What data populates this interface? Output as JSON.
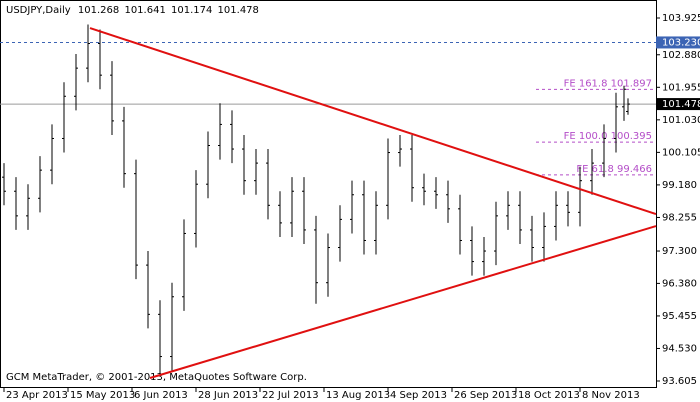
{
  "chart_data": {
    "type": "ohlc",
    "header": {
      "symbol": "USDJPY,Daily",
      "ohlc": [
        101.268,
        101.641,
        101.174,
        101.478
      ]
    },
    "footer": "GCM MetaTrader, © 2001-2013, MetaQuotes Software Corp.",
    "color": "#000000",
    "x": [
      0,
      3,
      6,
      9,
      12,
      15,
      18,
      21,
      24,
      27,
      30,
      33,
      36,
      39,
      42,
      45,
      48,
      51,
      54,
      57,
      60,
      63,
      66,
      69,
      72,
      75,
      78,
      81,
      84,
      87,
      90,
      93,
      96,
      99,
      102,
      105,
      108,
      111,
      114,
      117,
      120,
      123,
      126,
      129,
      132,
      135,
      138,
      141,
      144,
      147,
      150,
      153,
      155,
      156
    ],
    "open": [
      99.4,
      99.0,
      98.3,
      98.8,
      99.6,
      100.5,
      101.7,
      102.5,
      103.2,
      102.3,
      101.0,
      99.5,
      96.9,
      95.5,
      94.3,
      96.0,
      97.8,
      99.2,
      100.3,
      100.9,
      100.2,
      99.3,
      99.8,
      98.6,
      98.1,
      99.0,
      97.9,
      96.4,
      97.4,
      98.2,
      98.9,
      97.6,
      98.6,
      100.1,
      100.2,
      99.1,
      99.0,
      98.9,
      98.5,
      97.6,
      97.0,
      97.3,
      98.3,
      98.6,
      97.9,
      97.4,
      98.0,
      98.6,
      98.4,
      99.3,
      99.8,
      100.5,
      101.4,
      101.268
    ],
    "high": [
      99.8,
      99.4,
      99.2,
      100.0,
      100.9,
      102.1,
      102.9,
      103.74,
      103.6,
      102.7,
      101.4,
      99.9,
      97.3,
      95.9,
      96.4,
      98.2,
      99.6,
      100.7,
      101.5,
      101.3,
      100.6,
      100.2,
      100.2,
      99.0,
      99.4,
      99.4,
      98.3,
      97.8,
      98.6,
      99.3,
      99.3,
      99.0,
      100.5,
      100.6,
      100.6,
      99.5,
      99.4,
      99.3,
      98.9,
      98.0,
      97.7,
      98.7,
      99.0,
      99.0,
      98.3,
      98.4,
      99.0,
      99.0,
      99.7,
      100.2,
      100.9,
      101.8,
      102.0,
      101.641
    ],
    "low": [
      98.6,
      97.9,
      97.9,
      98.4,
      99.2,
      100.1,
      101.3,
      102.1,
      101.9,
      100.6,
      99.1,
      96.5,
      95.1,
      93.79,
      93.9,
      95.6,
      97.4,
      98.8,
      99.9,
      99.8,
      98.9,
      98.9,
      98.2,
      97.7,
      97.7,
      97.5,
      95.8,
      96.0,
      97.0,
      97.8,
      97.2,
      97.2,
      98.2,
      99.7,
      98.7,
      98.6,
      98.5,
      98.1,
      97.2,
      96.6,
      96.6,
      96.9,
      97.9,
      97.5,
      97.0,
      97.0,
      97.6,
      98.0,
      98.0,
      98.9,
      99.4,
      100.1,
      101.0,
      101.174
    ],
    "close": [
      99.0,
      98.3,
      98.8,
      99.6,
      100.5,
      101.7,
      102.5,
      103.2,
      102.3,
      101.0,
      99.5,
      96.9,
      95.5,
      94.3,
      96.0,
      97.8,
      99.2,
      100.3,
      100.9,
      100.2,
      99.3,
      99.8,
      98.6,
      98.1,
      99.0,
      97.9,
      96.4,
      97.4,
      98.2,
      98.9,
      97.6,
      98.6,
      100.1,
      100.2,
      99.1,
      99.0,
      98.9,
      98.5,
      97.6,
      97.0,
      97.3,
      98.3,
      98.6,
      97.9,
      97.4,
      98.0,
      98.6,
      98.4,
      99.3,
      99.8,
      100.5,
      101.4,
      101.9,
      101.478
    ],
    "xlim": [
      -1,
      163
    ],
    "ylim": [
      93.406,
      104.437
    ],
    "xticks": [
      {
        "value": 0,
        "label": "23 Apr 2013"
      },
      {
        "value": 16,
        "label": "15 May 2013"
      },
      {
        "value": 32,
        "label": "6 Jun 2013"
      },
      {
        "value": 48,
        "label": "28 Jun 2013"
      },
      {
        "value": 64,
        "label": "22 Jul 2013"
      },
      {
        "value": 80,
        "label": "13 Aug 2013"
      },
      {
        "value": 96,
        "label": "4 Sep 2013"
      },
      {
        "value": 112,
        "label": "26 Sep 2013"
      },
      {
        "value": 128,
        "label": "18 Oct 2013"
      },
      {
        "value": 144,
        "label": "8 Nov 2013"
      }
    ],
    "yticks": [
      103.925,
      {
        "value": 102.88,
        "label": "102.880"
      },
      101.955,
      {
        "value": 101.03,
        "label": "101.030"
      },
      100.105,
      {
        "value": 99.18,
        "label": "99.180"
      },
      98.255,
      {
        "value": 97.3,
        "label": "97.300"
      },
      {
        "value": 96.38,
        "label": "96.380"
      },
      95.455,
      {
        "value": 94.53,
        "label": "94.530"
      },
      93.605
    ],
    "price_levels": [
      {
        "value": 103.23,
        "label": "103.230",
        "color": "#3c64b4",
        "dashed": true
      },
      {
        "value": 101.478,
        "color": "#9a9a9a",
        "dashed": false
      }
    ],
    "trendlines": [
      {
        "x": [
          21.5,
          163
        ],
        "y": [
          103.64,
          98.35
        ],
        "color": "#e01010"
      },
      {
        "x": [
          36.5,
          163
        ],
        "y": [
          93.69,
          98.01
        ],
        "color": "#e01010"
      }
    ],
    "fibo": [
      {
        "label": "FE 161.8 101.897",
        "value": 101.897,
        "x": 133
      },
      {
        "label": "FE 100.0 100.395",
        "value": 100.395,
        "x": 133
      },
      {
        "label": "FE 61.8 99.466",
        "value": 99.466,
        "x": 133
      }
    ],
    "fibo_color": "#b44ec8"
  }
}
